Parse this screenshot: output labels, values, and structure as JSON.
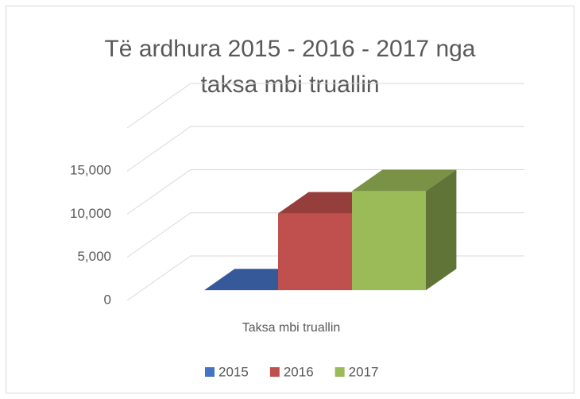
{
  "chart_data": {
    "type": "bar3d",
    "title": [
      "Të ardhura 2015 - 2016 - 2017 nga",
      "taksa mbi truallin"
    ],
    "categories": [
      "Taksa mbi truallin"
    ],
    "series": [
      {
        "name": "2015",
        "color": "#4472c4",
        "values": [
          0
        ]
      },
      {
        "name": "2016",
        "color": "#c0504d",
        "values": [
          8900
        ]
      },
      {
        "name": "2017",
        "color": "#9bbb59",
        "values": [
          11500
        ]
      }
    ],
    "ylim": [
      0,
      20000
    ],
    "yticks": [
      0,
      {
        "value": 5000,
        "label": "5,000"
      },
      {
        "value": 10000,
        "label": "10,000"
      },
      {
        "value": 15000,
        "label": "15,000"
      }
    ],
    "grid": true,
    "legend": "bottom"
  }
}
